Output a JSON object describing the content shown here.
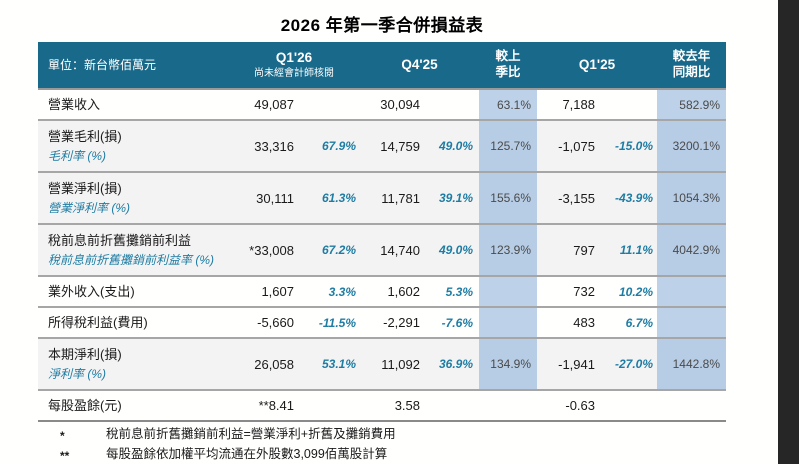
{
  "title": "2026 年第一季合併損益表",
  "colors": {
    "header_bg": "#18698a",
    "highlight_col": "#bdd2e8",
    "accent_text": "#1e7ca3",
    "shaded_row": "#f3f3f3",
    "dark_edge": "#262626"
  },
  "table": {
    "unit_label": "單位：新台幣佰萬元",
    "col_q126": "Q1'26",
    "col_q126_note": "尚未經會計師核閱",
    "col_q425": "Q4'25",
    "col_qoq_line1": "較上",
    "col_qoq_line2": "季比",
    "col_q125": "Q1'25",
    "col_yoy_line1": "較去年",
    "col_yoy_line2": "同期比",
    "rows": [
      {
        "label": "營業收入",
        "sublabel": "",
        "q126": "49,087",
        "q126_pct": "",
        "q425": "30,094",
        "q425_pct": "",
        "qoq": "63.1%",
        "q125": "7,188",
        "q125_pct": "",
        "yoy": "582.9%",
        "shaded": false,
        "hl": true,
        "tall": false
      },
      {
        "label": "營業毛利(損)",
        "sublabel": "毛利率 (%)",
        "q126": "33,316",
        "q126_pct": "67.9%",
        "q425": "14,759",
        "q425_pct": "49.0%",
        "qoq": "125.7%",
        "q125": "-1,075",
        "q125_pct": "-15.0%",
        "yoy": "3200.1%",
        "shaded": true,
        "hl": true,
        "tall": true
      },
      {
        "label": "營業淨利(損)",
        "sublabel": "營業淨利率 (%)",
        "q126": "30,111",
        "q126_pct": "61.3%",
        "q425": "11,781",
        "q425_pct": "39.1%",
        "qoq": "155.6%",
        "q125": "-3,155",
        "q125_pct": "-43.9%",
        "yoy": "1054.3%",
        "shaded": true,
        "hl": true,
        "tall": true
      },
      {
        "label": "稅前息前折舊攤銷前利益",
        "sublabel": "稅前息前折舊攤銷前利益率 (%)",
        "q126": "*33,008",
        "q126_pct": "67.2%",
        "q425": "14,740",
        "q425_pct": "49.0%",
        "qoq": "123.9%",
        "q125": "797",
        "q125_pct": "11.1%",
        "yoy": "4042.9%",
        "shaded": true,
        "hl": true,
        "tall": true
      },
      {
        "label": "業外收入(支出)",
        "sublabel": "",
        "q126": "1,607",
        "q126_pct": "3.3%",
        "q425": "1,602",
        "q425_pct": "5.3%",
        "qoq": "",
        "q125": "732",
        "q125_pct": "10.2%",
        "yoy": "",
        "shaded": false,
        "hl": true,
        "tall": false
      },
      {
        "label": "所得稅利益(費用)",
        "sublabel": "",
        "q126": "-5,660",
        "q126_pct": "-11.5%",
        "q425": "-2,291",
        "q425_pct": "-7.6%",
        "qoq": "",
        "q125": "483",
        "q125_pct": "6.7%",
        "yoy": "",
        "shaded": false,
        "hl": true,
        "tall": false
      },
      {
        "label": "本期淨利(損)",
        "sublabel": "淨利率 (%)",
        "q126": "26,058",
        "q126_pct": "53.1%",
        "q425": "11,092",
        "q425_pct": "36.9%",
        "qoq": "134.9%",
        "q125": "-1,941",
        "q125_pct": "-27.0%",
        "yoy": "1442.8%",
        "shaded": true,
        "hl": true,
        "tall": true
      },
      {
        "label": "每股盈餘(元)",
        "sublabel": "",
        "q126": "**8.41",
        "q126_pct": "",
        "q425": "3.58",
        "q425_pct": "",
        "qoq": "",
        "q125": "-0.63",
        "q125_pct": "",
        "yoy": "",
        "shaded": false,
        "hl": false,
        "tall": false
      }
    ]
  },
  "footnotes": [
    {
      "marker": "*",
      "text": "稅前息前折舊攤銷前利益=營業淨利+折舊及攤銷費用"
    },
    {
      "marker": "**",
      "text": "每股盈餘依加權平均流通在外股數3,099佰萬股計算"
    }
  ]
}
